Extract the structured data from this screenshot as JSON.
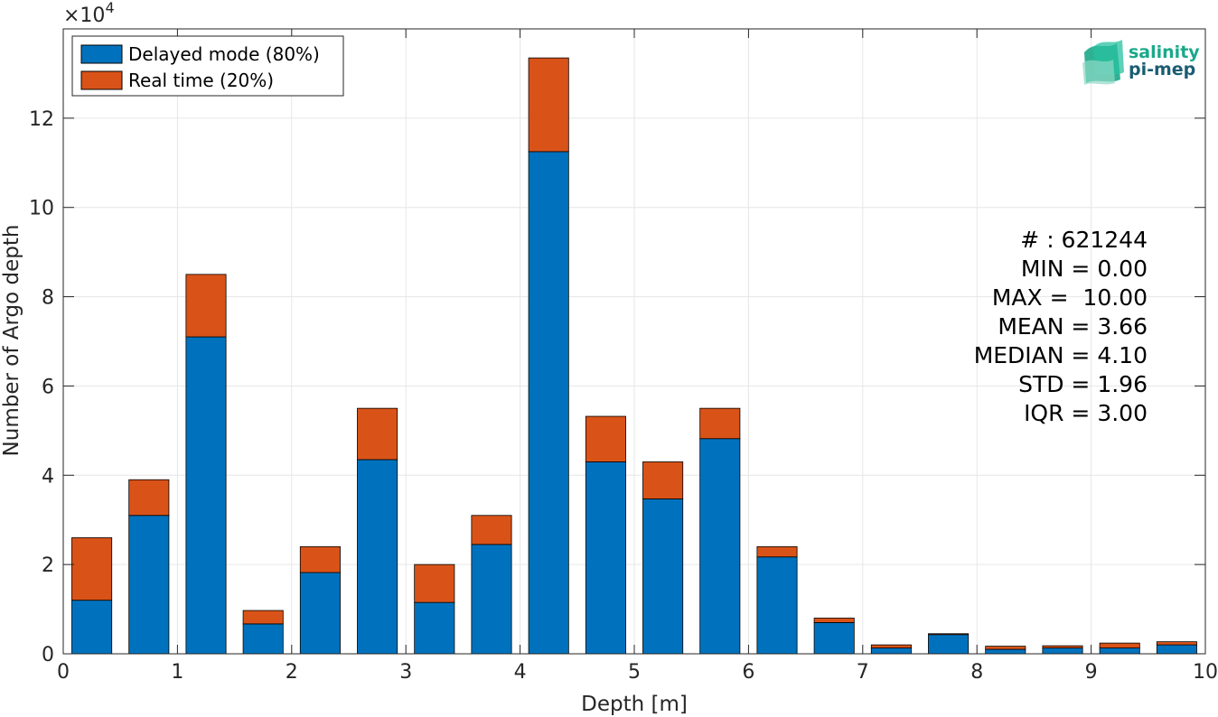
{
  "chart_data": {
    "type": "bar",
    "stacked": true,
    "xlabel": "Depth [m]",
    "ylabel": "Number of Argo depth",
    "xlim": [
      0,
      10
    ],
    "ylim": [
      0,
      140000
    ],
    "y_exponent_label": "×10",
    "y_exponent_power": "4",
    "x_ticks": [
      "0",
      "1",
      "2",
      "3",
      "4",
      "5",
      "6",
      "7",
      "8",
      "9",
      "10"
    ],
    "y_ticks": [
      "0",
      "2",
      "4",
      "6",
      "8",
      "10",
      "12"
    ],
    "grid": true,
    "legend_position": "top-left",
    "bin_centers": [
      0.25,
      0.75,
      1.25,
      1.75,
      2.25,
      2.75,
      3.25,
      3.75,
      4.25,
      4.75,
      5.25,
      5.75,
      6.25,
      6.75,
      7.25,
      7.75,
      8.25,
      8.75,
      9.25,
      9.75
    ],
    "series": [
      {
        "name": "Delayed mode (80%)",
        "color": "#0072BD",
        "values": [
          12000,
          31000,
          71000,
          6700,
          18200,
          43500,
          11500,
          24500,
          112500,
          43000,
          34700,
          48200,
          21700,
          7000,
          1300,
          4300,
          1000,
          1300,
          1300,
          2000
        ]
      },
      {
        "name": "Real time (20%)",
        "color": "#D95319",
        "values": [
          14000,
          8000,
          14000,
          3000,
          5800,
          11500,
          8500,
          6500,
          21000,
          10200,
          8300,
          6800,
          2300,
          1000,
          700,
          200,
          700,
          500,
          1100,
          700
        ]
      }
    ]
  },
  "stats": {
    "count": "# : 621244",
    "min": "MIN = 0.00",
    "max": "MAX =  10.00",
    "mean": "MEAN = 3.66",
    "median": "MEDIAN = 4.10",
    "std": "STD = 1.96",
    "iqr": "IQR = 3.00"
  },
  "logo": {
    "line1": "salinity",
    "line2": "pi-mep",
    "color1": "#1aa98a",
    "color2": "#1a5d73"
  }
}
